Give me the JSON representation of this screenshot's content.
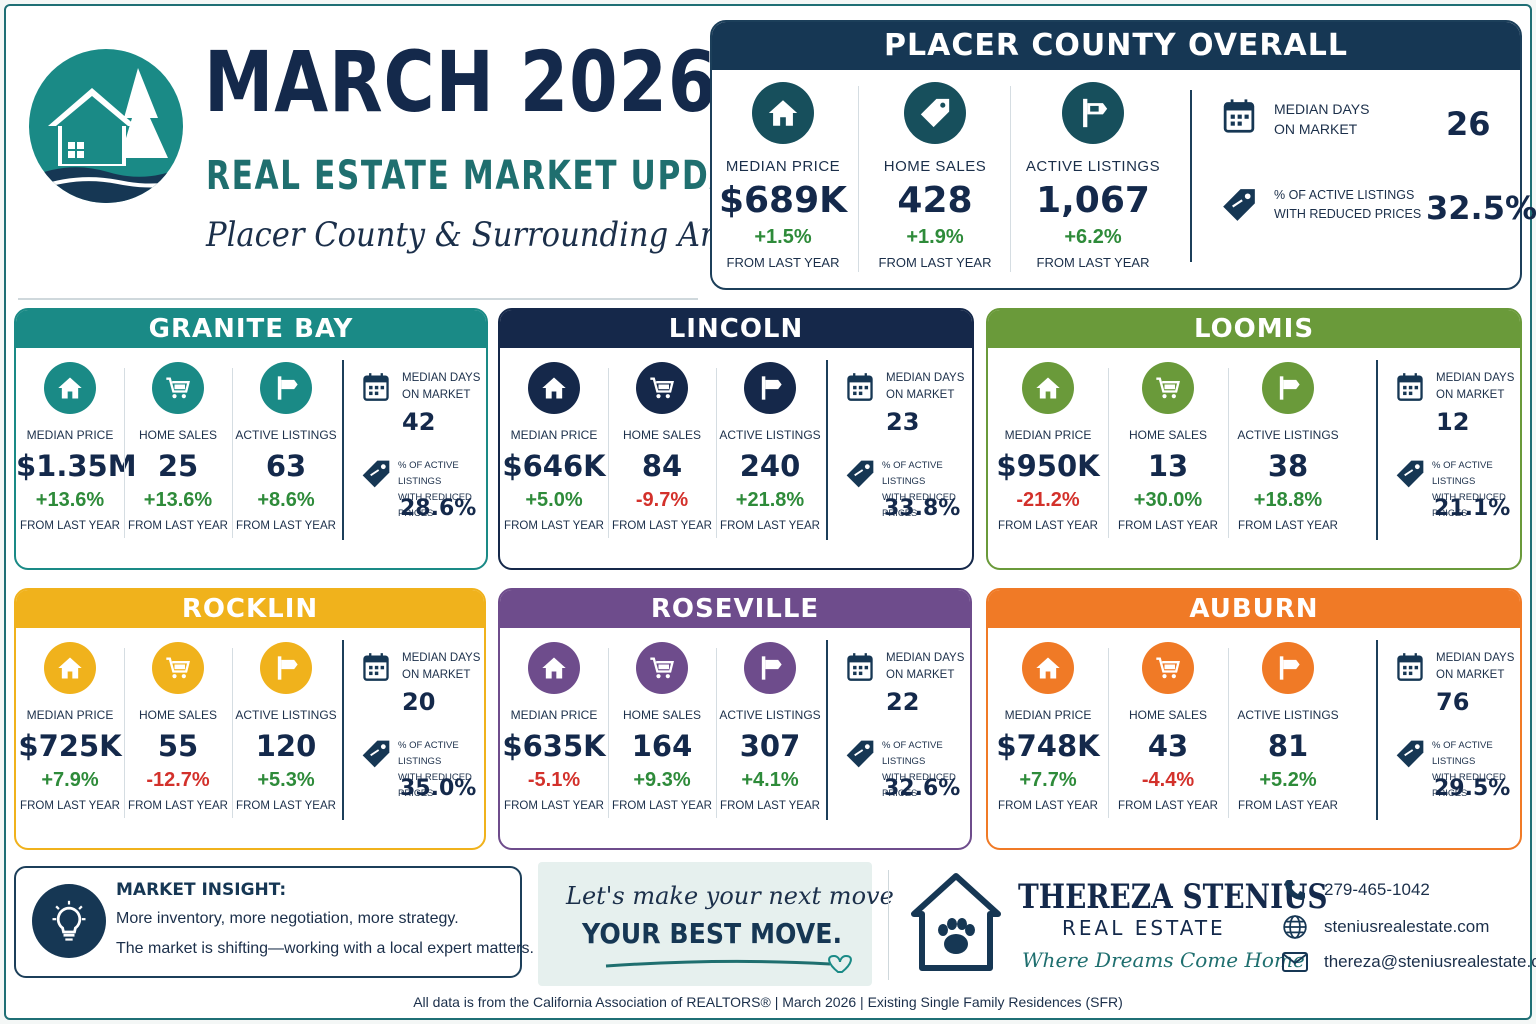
{
  "header": {
    "title": "MARCH 2026",
    "subtitle": "REAL ESTATE MARKET UPDATE",
    "script": "Placer County & Surrounding Areas"
  },
  "overall": {
    "title": "PLACER COUNTY OVERALL",
    "metrics": [
      {
        "label": "MEDIAN PRICE",
        "value": "$689K",
        "change": "+1.5%",
        "from": "FROM LAST YEAR",
        "icon": "house-icon"
      },
      {
        "label": "HOME SALES",
        "value": "428",
        "change": "+1.9%",
        "from": "FROM LAST YEAR",
        "icon": "price-tag-icon"
      },
      {
        "label": "ACTIVE LISTINGS",
        "value": "1,067",
        "change": "+6.2%",
        "from": "FROM LAST YEAR",
        "icon": "sign-icon"
      }
    ],
    "dom_label_1": "MEDIAN DAYS",
    "dom_label_2": "ON MARKET",
    "dom_value": "26",
    "reduced_label_1": "% OF ACTIVE LISTINGS",
    "reduced_label_2": "WITH REDUCED PRICES",
    "reduced_value": "32.5%"
  },
  "labels": {
    "median_price": "MEDIAN PRICE",
    "home_sales": "HOME SALES",
    "active_listings": "ACTIVE LISTINGS",
    "from": "FROM LAST YEAR",
    "dom_1": "MEDIAN DAYS",
    "dom_2": "ON MARKET",
    "red_1": "% OF ACTIVE LISTINGS",
    "red_2": "WITH REDUCED PRICES"
  },
  "areas": [
    {
      "name": "GRANITE BAY",
      "color": "#1a8a86",
      "price": "$1.35M",
      "price_chg": "+13.6%",
      "sales": "25",
      "sales_chg": "+13.6%",
      "listings": "63",
      "listings_chg": "+8.6%",
      "dom": "42",
      "reduced": "28.6%"
    },
    {
      "name": "LINCOLN",
      "color": "#15284a",
      "price": "$646K",
      "price_chg": "+5.0%",
      "sales": "84",
      "sales_chg": "-9.7%",
      "listings": "240",
      "listings_chg": "+21.8%",
      "dom": "23",
      "reduced": "33.8%"
    },
    {
      "name": "LOOMIS",
      "color": "#6a9a3a",
      "price": "$950K",
      "price_chg": "-21.2%",
      "sales": "13",
      "sales_chg": "+30.0%",
      "listings": "38",
      "listings_chg": "+18.8%",
      "dom": "12",
      "reduced": "21.1%"
    },
    {
      "name": "ROCKLIN",
      "color": "#f0b21c",
      "price": "$725K",
      "price_chg": "+7.9%",
      "sales": "55",
      "sales_chg": "-12.7%",
      "listings": "120",
      "listings_chg": "+5.3%",
      "dom": "20",
      "reduced": "35.0%"
    },
    {
      "name": "ROSEVILLE",
      "color": "#6e4c8c",
      "price": "$635K",
      "price_chg": "-5.1%",
      "sales": "164",
      "sales_chg": "+9.3%",
      "listings": "307",
      "listings_chg": "+4.1%",
      "dom": "22",
      "reduced": "32.6%"
    },
    {
      "name": "AUBURN",
      "color": "#f07a26",
      "price": "$748K",
      "price_chg": "+7.7%",
      "sales": "43",
      "sales_chg": "-4.4%",
      "listings": "81",
      "listings_chg": "+5.2%",
      "dom": "76",
      "reduced": "29.5%"
    }
  ],
  "insight": {
    "heading": "MARKET INSIGHT:",
    "line1": "More inventory, more negotiation, more strategy.",
    "line2": "The market is shifting—working with a local expert matters."
  },
  "cta": {
    "script": "Let's make your next move",
    "bold": "YOUR BEST MOVE."
  },
  "brand": {
    "name": "THEREZA STENIUS",
    "sub": "REAL ESTATE",
    "tagline": "Where Dreams Come Home"
  },
  "contact": {
    "phone": "279-465-1042",
    "website": "steniusrealestate.com",
    "email": "thereza@steniusrealestate.com"
  },
  "source": "All data is from the California Association of REALTORS®   |   March 2026   |   Existing Single Family Residences (SFR)",
  "colors": {
    "navy": "#163754",
    "teal": "#1f6f6f",
    "positive": "#2e8b3a",
    "negative": "#d3312b"
  }
}
